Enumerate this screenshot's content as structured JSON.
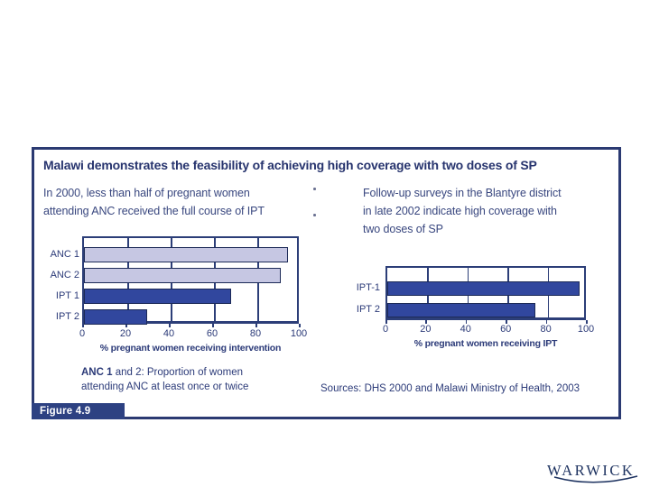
{
  "slide": {
    "title": "Malawi demonstrates the feasibility of achieving high coverage with two doses of SP",
    "left_caption_lines": [
      "In 2000, less than half of pregnant women",
      "attending ANC received the full course of IPT"
    ],
    "right_caption_lines": [
      "Follow-up surveys in the Blantyre district",
      "in late 2002 indicate high coverage with",
      "two doses of SP"
    ],
    "left_footnote": {
      "bold": "ANC 1",
      "rest": " and 2: Proportion of women",
      "line2": "attending ANC at least once or twice"
    },
    "sources": "Sources: DHS 2000 and Malawi Ministry of Health, 2003",
    "figure_label": "Figure 4.9",
    "logo_text": "WARWICK"
  },
  "colors": {
    "navy_text": "#2b3a78",
    "frame_navy": "#2c3e78",
    "box_border": "#2b3a72",
    "bar_light": "#c6c7e3",
    "bar_dark": "#31479e",
    "bar_border": "#1c2a57",
    "badge_bg": "#2d4182",
    "logo_navy": "#1d3260"
  },
  "chart_data": [
    {
      "type": "bar",
      "orientation": "horizontal",
      "categories": [
        "ANC 1",
        "ANC 2",
        "IPT 1",
        "IPT 2"
      ],
      "values": [
        94,
        91,
        68,
        29
      ],
      "bar_colors": [
        "#c6c7e3",
        "#c6c7e3",
        "#31479e",
        "#31479e"
      ],
      "xlabel": "% pregnant women receiving intervention",
      "xlim": [
        0,
        100
      ],
      "xticks": [
        0,
        20,
        40,
        60,
        80,
        100
      ],
      "grid": true,
      "legend": false
    },
    {
      "type": "bar",
      "orientation": "horizontal",
      "categories": [
        "IPT-1",
        "IPT 2"
      ],
      "values": [
        96,
        74
      ],
      "bar_colors": [
        "#31479e",
        "#31479e"
      ],
      "xlabel": "% pregnant women receiving IPT",
      "xlim": [
        0,
        100
      ],
      "xticks": [
        0,
        20,
        40,
        60,
        80,
        100
      ],
      "grid": true,
      "legend": false
    }
  ]
}
